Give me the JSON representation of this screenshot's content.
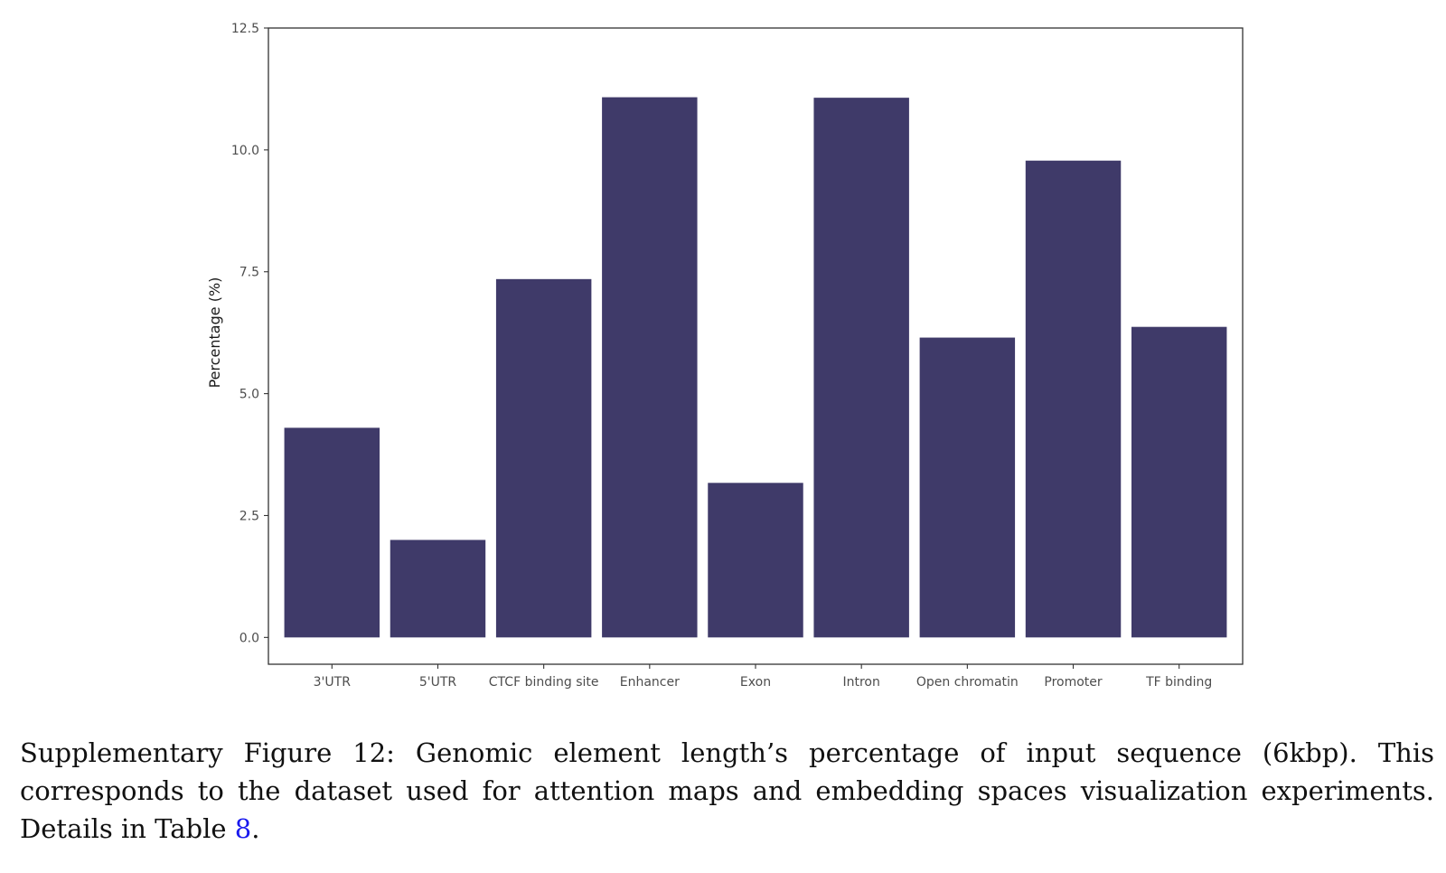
{
  "chart_data": {
    "type": "bar",
    "categories": [
      "3'UTR",
      "5'UTR",
      "CTCF binding site",
      "Enhancer",
      "Exon",
      "Intron",
      "Open chromatin",
      "Promoter",
      "TF binding"
    ],
    "values": [
      4.3,
      2.0,
      7.35,
      11.08,
      3.17,
      11.07,
      6.15,
      9.78,
      6.37
    ],
    "xlabel": "",
    "ylabel": "Percentage (%)",
    "ylim": [
      -0.55,
      12.5
    ],
    "yticks": [
      0.0,
      2.5,
      5.0,
      7.5,
      10.0,
      12.5
    ],
    "ytick_labels": [
      "0.0",
      "2.5",
      "5.0",
      "7.5",
      "10.0",
      "12.5"
    ],
    "bar_color": "#3f3a69",
    "grid": false,
    "legend": "none"
  },
  "caption": {
    "text": "Supplementary Figure 12: Genomic element length’s percentage of input sequence (6kbp). This corresponds to the dataset used for attention maps and embedding spaces visualization experiments. Details in Table ",
    "ref": "8",
    "end": "."
  }
}
